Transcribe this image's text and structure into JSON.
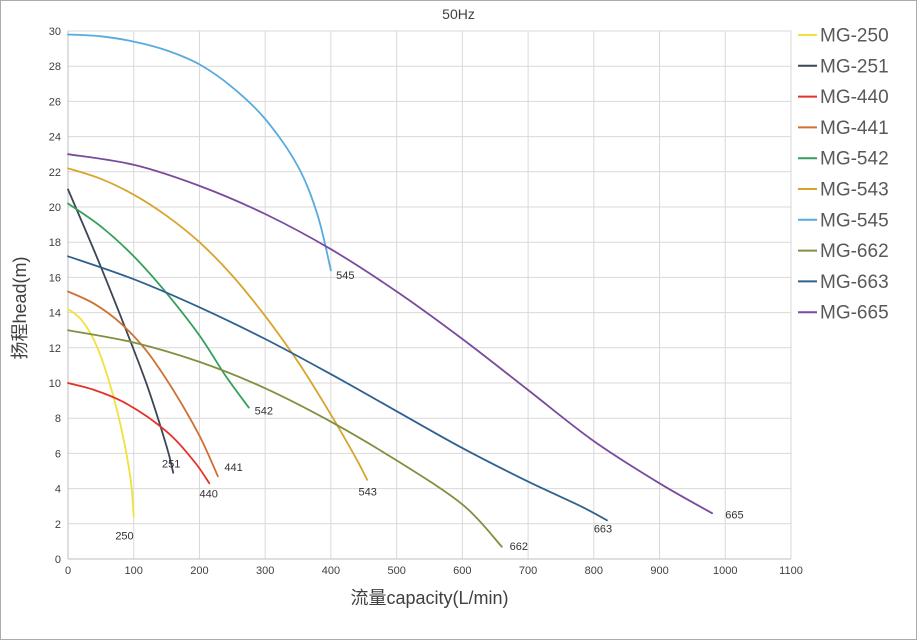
{
  "chart_data": {
    "type": "line",
    "title": "50Hz",
    "xlabel": "流量capacity(L/min)",
    "ylabel": "扬程head(m)",
    "xlim": [
      0,
      1100
    ],
    "ylim": [
      0,
      30
    ],
    "x_ticks": [
      0,
      100,
      200,
      300,
      400,
      500,
      600,
      700,
      800,
      900,
      1000,
      1100
    ],
    "y_ticks": [
      0,
      2,
      4,
      6,
      8,
      10,
      12,
      14,
      16,
      18,
      20,
      22,
      24,
      26,
      28,
      30
    ],
    "grid": true,
    "legend_position": "right",
    "grid_color": "#d9d9d9",
    "axis_color": "#bfbfbf",
    "tick_label_color": "#404040",
    "legend_text_color": "#595959",
    "annotation_color": "#333333",
    "series": [
      {
        "name": "MG-250",
        "color": "#f1e13a",
        "label": "250",
        "label_at": [
          72,
          1.1
        ],
        "points": [
          [
            0,
            14.2
          ],
          [
            20,
            13.6
          ],
          [
            40,
            12.4
          ],
          [
            60,
            10.4
          ],
          [
            80,
            7.6
          ],
          [
            95,
            4.6
          ],
          [
            100,
            2.4
          ]
        ]
      },
      {
        "name": "MG-251",
        "color": "#3b4656",
        "label": "251",
        "label_at": [
          143,
          5.2
        ],
        "points": [
          [
            0,
            21.0
          ],
          [
            40,
            17.5
          ],
          [
            80,
            13.8
          ],
          [
            120,
            9.9
          ],
          [
            150,
            6.4
          ],
          [
            160,
            4.9
          ]
        ]
      },
      {
        "name": "MG-440",
        "color": "#e53228",
        "label": "440",
        "label_at": [
          200,
          3.5
        ],
        "points": [
          [
            0,
            10.0
          ],
          [
            40,
            9.6
          ],
          [
            80,
            9.0
          ],
          [
            120,
            8.1
          ],
          [
            160,
            6.9
          ],
          [
            195,
            5.4
          ],
          [
            215,
            4.3
          ]
        ]
      },
      {
        "name": "MG-441",
        "color": "#cf7133",
        "label": "441",
        "label_at": [
          238,
          5.0
        ],
        "points": [
          [
            0,
            15.2
          ],
          [
            40,
            14.5
          ],
          [
            80,
            13.4
          ],
          [
            120,
            11.8
          ],
          [
            160,
            9.6
          ],
          [
            200,
            7.0
          ],
          [
            228,
            4.7
          ]
        ]
      },
      {
        "name": "MG-542",
        "color": "#33a05a",
        "label": "542",
        "label_at": [
          284,
          8.2
        ],
        "points": [
          [
            0,
            20.2
          ],
          [
            50,
            18.9
          ],
          [
            100,
            17.2
          ],
          [
            150,
            15.1
          ],
          [
            200,
            12.7
          ],
          [
            240,
            10.4
          ],
          [
            275,
            8.6
          ]
        ]
      },
      {
        "name": "MG-543",
        "color": "#d7a52b",
        "label": "543",
        "label_at": [
          442,
          3.6
        ],
        "points": [
          [
            0,
            22.2
          ],
          [
            50,
            21.6
          ],
          [
            100,
            20.7
          ],
          [
            150,
            19.5
          ],
          [
            200,
            18.0
          ],
          [
            250,
            16.1
          ],
          [
            300,
            13.8
          ],
          [
            350,
            11.2
          ],
          [
            400,
            8.2
          ],
          [
            440,
            5.6
          ],
          [
            455,
            4.5
          ]
        ]
      },
      {
        "name": "MG-545",
        "color": "#58abdf",
        "label": "545",
        "label_at": [
          408,
          15.9
        ],
        "points": [
          [
            0,
            29.8
          ],
          [
            50,
            29.7
          ],
          [
            100,
            29.4
          ],
          [
            150,
            28.9
          ],
          [
            200,
            28.1
          ],
          [
            250,
            26.8
          ],
          [
            300,
            25.0
          ],
          [
            350,
            22.3
          ],
          [
            380,
            19.5
          ],
          [
            400,
            16.4
          ]
        ]
      },
      {
        "name": "MG-662",
        "color": "#7f9140",
        "label": "662",
        "label_at": [
          672,
          0.5
        ],
        "points": [
          [
            0,
            13.0
          ],
          [
            100,
            12.3
          ],
          [
            200,
            11.2
          ],
          [
            300,
            9.7
          ],
          [
            400,
            7.8
          ],
          [
            500,
            5.6
          ],
          [
            600,
            3.1
          ],
          [
            660,
            0.7
          ]
        ]
      },
      {
        "name": "MG-663",
        "color": "#2f6190",
        "label": "663",
        "label_at": [
          800,
          1.5
        ],
        "points": [
          [
            0,
            17.2
          ],
          [
            100,
            15.9
          ],
          [
            200,
            14.3
          ],
          [
            300,
            12.5
          ],
          [
            400,
            10.5
          ],
          [
            500,
            8.4
          ],
          [
            600,
            6.3
          ],
          [
            700,
            4.4
          ],
          [
            780,
            3.0
          ],
          [
            820,
            2.2
          ]
        ]
      },
      {
        "name": "MG-665",
        "color": "#7a4b9d",
        "label": "665",
        "label_at": [
          1000,
          2.3
        ],
        "points": [
          [
            0,
            23.0
          ],
          [
            100,
            22.4
          ],
          [
            200,
            21.2
          ],
          [
            300,
            19.6
          ],
          [
            400,
            17.6
          ],
          [
            500,
            15.2
          ],
          [
            600,
            12.5
          ],
          [
            700,
            9.6
          ],
          [
            800,
            6.7
          ],
          [
            900,
            4.3
          ],
          [
            980,
            2.6
          ]
        ]
      }
    ]
  }
}
